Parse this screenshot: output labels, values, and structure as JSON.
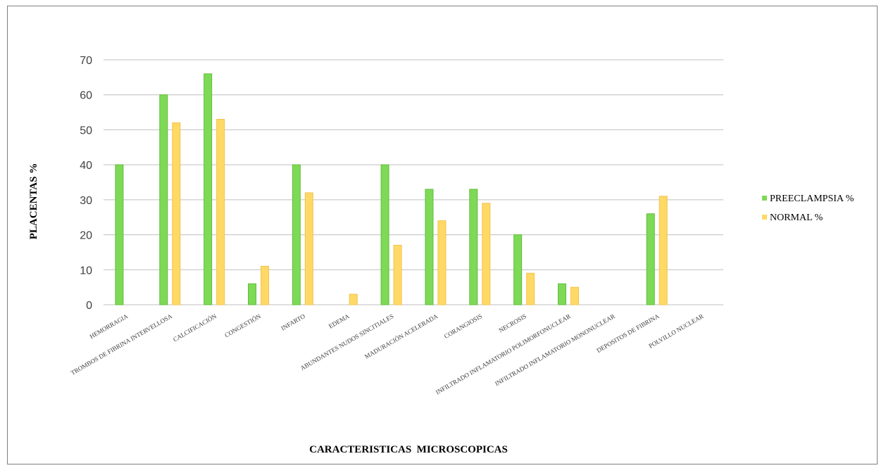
{
  "chart_data": {
    "type": "bar",
    "title": "",
    "xlabel": "CARACTERISTICAS  MICROSCOPICAS",
    "ylabel": "PLACENTAS %",
    "ylim": [
      0,
      70
    ],
    "yticks": [
      0,
      10,
      20,
      30,
      40,
      50,
      60,
      70
    ],
    "grid": true,
    "legend_position": "right",
    "categories": [
      "HEMORRAGIA",
      "TROMBOS DE FIBRINA INTERVELLOSA",
      "CALCIFICACIÓN",
      "CONGESTIÓN",
      "INFARTO",
      "EDEMA",
      "ABUNDANTES NUDOS SINCITIALES",
      "MADURACIÓN ACELERADA",
      "CORANGIOSIS",
      "NECROSIS",
      "INFILTRADO INFLAMATORIO POLIMORFONUCLEAR",
      "INFILTRADO INFLAMATORIO MONONUCLEAR",
      "DEPOSITOS DE FIBRINA",
      "POLVILLO NUCLEAR"
    ],
    "series": [
      {
        "name": "PREECLAMPSIA %",
        "color": "#7ed957",
        "values": [
          40,
          60,
          66,
          6,
          40,
          0,
          40,
          33,
          33,
          20,
          6,
          0,
          26,
          0
        ]
      },
      {
        "name": "NORMAL %",
        "color": "#ffd966",
        "values": [
          0,
          52,
          53,
          11,
          32,
          3,
          17,
          24,
          29,
          9,
          5,
          0,
          31,
          0
        ]
      }
    ]
  }
}
